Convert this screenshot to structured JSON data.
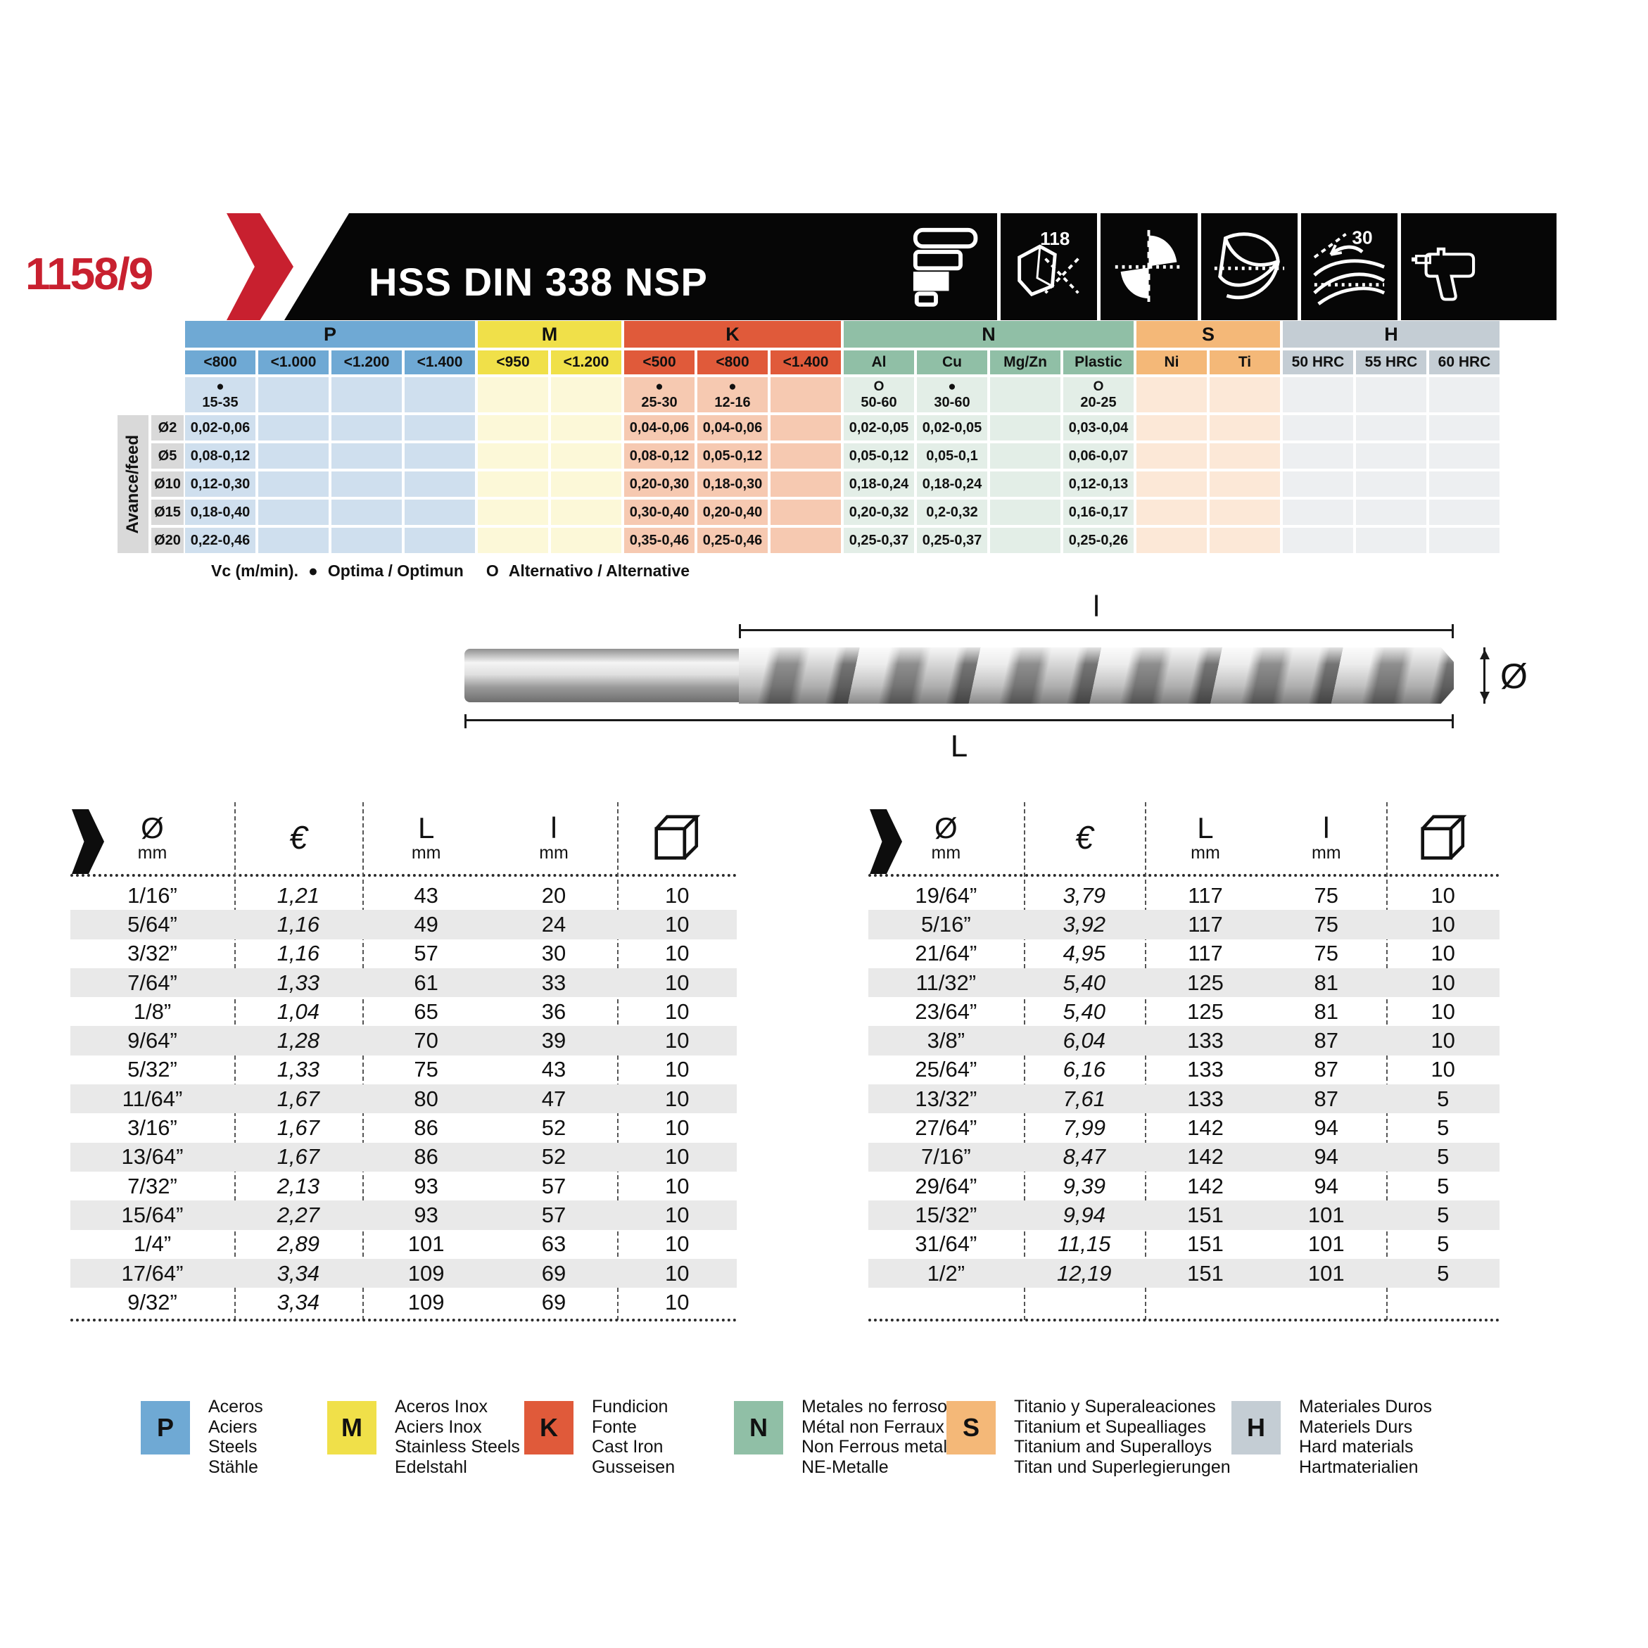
{
  "page": {
    "code": "1158/9",
    "title": "HSS DIN 338 NSP"
  },
  "header_icons": [
    {
      "name": "shank-bars-icon",
      "label": ""
    },
    {
      "name": "point-angle-icon",
      "label": "118"
    },
    {
      "name": "cross-section-icon",
      "label": ""
    },
    {
      "name": "flute-profile-icon",
      "label": ""
    },
    {
      "name": "helix-angle-icon",
      "label": "30"
    },
    {
      "name": "drill-machine-icon",
      "label": ""
    }
  ],
  "cutting": {
    "groups": [
      {
        "code": "P",
        "header_color": "#6fa9d4",
        "cell_color": "#cfdfee",
        "subcols": [
          "<800",
          "<1.000",
          "<1.200",
          "<1.400"
        ]
      },
      {
        "code": "M",
        "header_color": "#f0e049",
        "cell_color": "#fcf8d8",
        "subcols": [
          "<950",
          "<1.200"
        ]
      },
      {
        "code": "K",
        "header_color": "#e05a3a",
        "cell_color": "#f6c9b1",
        "subcols": [
          "<500",
          "<800",
          "<1.400"
        ]
      },
      {
        "code": "N",
        "header_color": "#90bfa6",
        "cell_color": "#e3eee7",
        "subcols": [
          "Al",
          "Cu",
          "Mg/Zn",
          "Plastic"
        ]
      },
      {
        "code": "S",
        "header_color": "#f4b878",
        "cell_color": "#fce8d7",
        "subcols": [
          "Ni",
          "Ti"
        ]
      },
      {
        "code": "H",
        "header_color": "#c4cdd4",
        "cell_color": "#edeff1",
        "subcols": [
          "50 HRC",
          "55 HRC",
          "60 HRC"
        ]
      }
    ],
    "vc_cells": [
      {
        "marker": "●",
        "value": "15-35"
      },
      {},
      {},
      {},
      {},
      {},
      {
        "marker": "●",
        "value": "25-30"
      },
      {
        "marker": "●",
        "value": "12-16"
      },
      {},
      {
        "marker": "O",
        "value": "50-60"
      },
      {
        "marker": "●",
        "value": "30-60"
      },
      {},
      {
        "marker": "O",
        "value": "20-25"
      },
      {},
      {},
      {},
      {},
      {}
    ],
    "feed_axis_label": "Avance/feed",
    "feed_rows": [
      {
        "dia": "Ø2",
        "cells": [
          "0,02-0,06",
          "",
          "",
          "",
          "",
          "",
          "0,04-0,06",
          "0,04-0,06",
          "",
          "0,02-0,05",
          "0,02-0,05",
          "",
          "0,03-0,04",
          "",
          "",
          "",
          "",
          ""
        ]
      },
      {
        "dia": "Ø5",
        "cells": [
          "0,08-0,12",
          "",
          "",
          "",
          "",
          "",
          "0,08-0,12",
          "0,05-0,12",
          "",
          "0,05-0,12",
          "0,05-0,1",
          "",
          "0,06-0,07",
          "",
          "",
          "",
          "",
          ""
        ]
      },
      {
        "dia": "Ø10",
        "cells": [
          "0,12-0,30",
          "",
          "",
          "",
          "",
          "",
          "0,20-0,30",
          "0,18-0,30",
          "",
          "0,18-0,24",
          "0,18-0,24",
          "",
          "0,12-0,13",
          "",
          "",
          "",
          "",
          ""
        ]
      },
      {
        "dia": "Ø15",
        "cells": [
          "0,18-0,40",
          "",
          "",
          "",
          "",
          "",
          "0,30-0,40",
          "0,20-0,40",
          "",
          "0,20-0,32",
          "0,2-0,32",
          "",
          "0,16-0,17",
          "",
          "",
          "",
          "",
          ""
        ]
      },
      {
        "dia": "Ø20",
        "cells": [
          "0,22-0,46",
          "",
          "",
          "",
          "",
          "",
          "0,35-0,46",
          "0,25-0,46",
          "",
          "0,25-0,37",
          "0,25-0,37",
          "",
          "0,25-0,26",
          "",
          "",
          "",
          "",
          ""
        ]
      }
    ],
    "footnote": {
      "prefix": "Vc (m/min).",
      "optima_marker": "●",
      "optima_text": "Optima / Optimun",
      "alt_marker": "O",
      "alt_text": "Alternativo / Alternative"
    }
  },
  "diagram": {
    "flute_length_label": "l",
    "total_length_label": "L",
    "diameter_label": "Ø"
  },
  "price_tables": {
    "columns": {
      "dia": "Ø",
      "dia_unit": "mm",
      "price": "€",
      "total_len": "L",
      "total_len_unit": "mm",
      "flute_len": "l",
      "flute_len_unit": "mm",
      "package_icon": "package-box-icon"
    },
    "left_rows": [
      [
        "1/16”",
        "1,21",
        "43",
        "20",
        "10"
      ],
      [
        "5/64”",
        "1,16",
        "49",
        "24",
        "10"
      ],
      [
        "3/32”",
        "1,16",
        "57",
        "30",
        "10"
      ],
      [
        "7/64”",
        "1,33",
        "61",
        "33",
        "10"
      ],
      [
        "1/8”",
        "1,04",
        "65",
        "36",
        "10"
      ],
      [
        "9/64”",
        "1,28",
        "70",
        "39",
        "10"
      ],
      [
        "5/32”",
        "1,33",
        "75",
        "43",
        "10"
      ],
      [
        "11/64”",
        "1,67",
        "80",
        "47",
        "10"
      ],
      [
        "3/16”",
        "1,67",
        "86",
        "52",
        "10"
      ],
      [
        "13/64”",
        "1,67",
        "86",
        "52",
        "10"
      ],
      [
        "7/32”",
        "2,13",
        "93",
        "57",
        "10"
      ],
      [
        "15/64”",
        "2,27",
        "93",
        "57",
        "10"
      ],
      [
        "1/4”",
        "2,89",
        "101",
        "63",
        "10"
      ],
      [
        "17/64”",
        "3,34",
        "109",
        "69",
        "10"
      ],
      [
        "9/32”",
        "3,34",
        "109",
        "69",
        "10"
      ]
    ],
    "right_rows": [
      [
        "19/64”",
        "3,79",
        "117",
        "75",
        "10"
      ],
      [
        "5/16”",
        "3,92",
        "117",
        "75",
        "10"
      ],
      [
        "21/64”",
        "4,95",
        "117",
        "75",
        "10"
      ],
      [
        "11/32”",
        "5,40",
        "125",
        "81",
        "10"
      ],
      [
        "23/64”",
        "5,40",
        "125",
        "81",
        "10"
      ],
      [
        "3/8”",
        "6,04",
        "133",
        "87",
        "10"
      ],
      [
        "25/64”",
        "6,16",
        "133",
        "87",
        "10"
      ],
      [
        "13/32”",
        "7,61",
        "133",
        "87",
        "5"
      ],
      [
        "27/64”",
        "7,99",
        "142",
        "94",
        "5"
      ],
      [
        "7/16”",
        "8,47",
        "142",
        "94",
        "5"
      ],
      [
        "29/64”",
        "9,39",
        "142",
        "94",
        "5"
      ],
      [
        "15/32”",
        "9,94",
        "151",
        "101",
        "5"
      ],
      [
        "31/64”",
        "11,15",
        "151",
        "101",
        "5"
      ],
      [
        "1/2”",
        "12,19",
        "151",
        "101",
        "5"
      ]
    ]
  },
  "legend": [
    {
      "code": "P",
      "color": "#6fa9d4",
      "lines": [
        "Aceros",
        "Aciers",
        "Steels",
        "Stähle"
      ]
    },
    {
      "code": "M",
      "color": "#f0e049",
      "lines": [
        "Aceros Inox",
        "Aciers Inox",
        "Stainless Steels",
        "Edelstahl"
      ]
    },
    {
      "code": "K",
      "color": "#e05a3a",
      "lines": [
        "Fundicion",
        "Fonte",
        "Cast Iron",
        "Gusseisen"
      ]
    },
    {
      "code": "N",
      "color": "#90bfa6",
      "lines": [
        "Metales no ferrosos",
        "Métal non Ferraux",
        "Non Ferrous metals",
        "NE-Metalle"
      ]
    },
    {
      "code": "S",
      "color": "#f4b878",
      "lines": [
        "Titanio y Superaleaciones",
        "Titanium et Supealliages",
        "Titanium and Superalloys",
        "Titan und Superlegierungen"
      ]
    },
    {
      "code": "H",
      "color": "#c4cdd4",
      "lines": [
        "Materiales Duros",
        "Materiels Durs",
        "Hard materials",
        "Hartmaterialien"
      ]
    }
  ],
  "accent_colors": {
    "red": "#c8202f",
    "black": "#060606",
    "row_alt": "#e9e9e9",
    "label_gray": "#d9d9d9"
  }
}
